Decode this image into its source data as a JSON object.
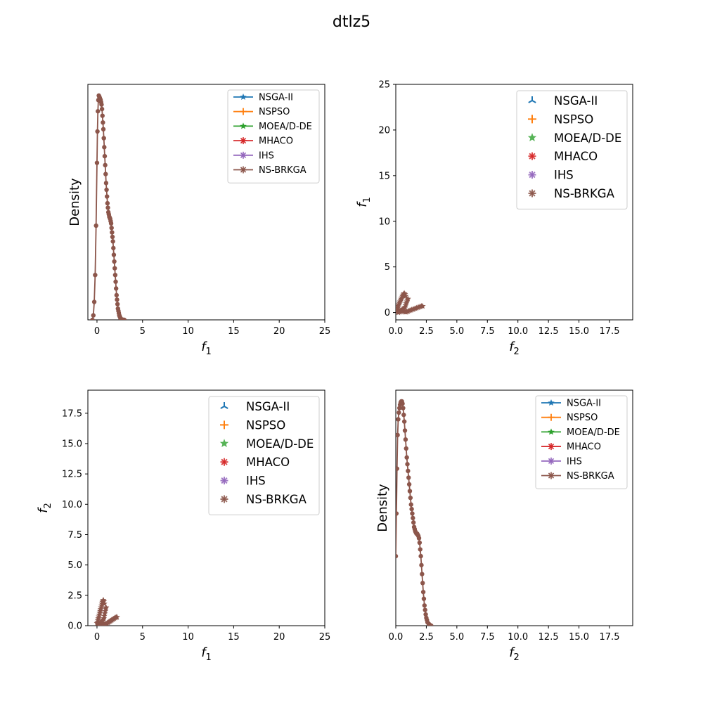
{
  "figure": {
    "title": "dtlz5"
  },
  "colors": {
    "NSGA-II": "#1f77b4",
    "NSPSO": "#ff7f0e",
    "MOEA/D-DE": "#2ca02c",
    "MHACO": "#d62728",
    "IHS": "#9467bd",
    "NS-BRKGA": "#8c564b"
  },
  "chart_data": [
    {
      "id": "top-left",
      "type": "line",
      "xlabel": "f1",
      "ylabel": "Density",
      "xlim": [
        -1,
        25
      ],
      "ylim": [
        0,
        1.05
      ],
      "xticks": [
        "0",
        "5",
        "10",
        "15",
        "20",
        "25"
      ],
      "yticks": [],
      "legend": {
        "placement": "top-right",
        "style": "line",
        "size": "small",
        "entries": [
          "NSGA-II",
          "NSPSO",
          "MOEA/D-DE",
          "MHACO",
          "IHS",
          "NS-BRKGA"
        ]
      },
      "series": [
        {
          "name": "NS-BRKGA",
          "marker": "circle",
          "x": [
            -0.5,
            -0.4,
            -0.3,
            -0.2,
            -0.1,
            0.0,
            0.05,
            0.1,
            0.15,
            0.2,
            0.25,
            0.3,
            0.35,
            0.4,
            0.45,
            0.5,
            0.55,
            0.6,
            0.65,
            0.7,
            0.75,
            0.8,
            0.85,
            0.9,
            0.95,
            1.0,
            1.05,
            1.1,
            1.15,
            1.2,
            1.25,
            1.3,
            1.35,
            1.4,
            1.45,
            1.5,
            1.55,
            1.6,
            1.65,
            1.7,
            1.75,
            1.8,
            1.85,
            1.9,
            1.95,
            2.0,
            2.05,
            2.1,
            2.15,
            2.2,
            2.25,
            2.3,
            2.35,
            2.4,
            2.45,
            2.5,
            2.55,
            2.6,
            2.65,
            2.7,
            2.8,
            2.9,
            3.0
          ],
          "y": [
            0.0,
            0.02,
            0.08,
            0.2,
            0.42,
            0.7,
            0.84,
            0.93,
            0.98,
            1.0,
            0.995,
            0.99,
            0.985,
            0.98,
            0.97,
            0.96,
            0.94,
            0.91,
            0.88,
            0.85,
            0.81,
            0.77,
            0.73,
            0.69,
            0.65,
            0.61,
            0.58,
            0.55,
            0.52,
            0.5,
            0.48,
            0.47,
            0.46,
            0.455,
            0.45,
            0.44,
            0.43,
            0.41,
            0.39,
            0.37,
            0.35,
            0.32,
            0.29,
            0.26,
            0.23,
            0.2,
            0.17,
            0.14,
            0.11,
            0.09,
            0.07,
            0.05,
            0.04,
            0.03,
            0.02,
            0.015,
            0.01,
            0.006,
            0.004,
            0.002,
            0.001,
            0.0,
            0.0
          ]
        }
      ]
    },
    {
      "id": "top-right",
      "type": "scatter",
      "xlabel": "f2",
      "ylabel": "f1",
      "xlim": [
        0,
        19.4
      ],
      "ylim": [
        -0.8,
        25
      ],
      "xticks": [
        "0.0",
        "2.5",
        "5.0",
        "7.5",
        "10.0",
        "12.5",
        "15.0",
        "17.5"
      ],
      "yticks": [
        "0",
        "5",
        "10",
        "15",
        "20",
        "25"
      ],
      "legend": {
        "placement": "top-right",
        "style": "marker",
        "size": "large",
        "entries": [
          "NSGA-II",
          "NSPSO",
          "MOEA/D-DE",
          "MHACO",
          "IHS",
          "NS-BRKGA"
        ]
      },
      "series": [
        {
          "name": "NS-BRKGA",
          "marker": "star",
          "x": [
            0.0,
            0.05,
            0.1,
            0.15,
            0.2,
            0.25,
            0.3,
            0.35,
            0.4,
            0.45,
            0.5,
            0.55,
            0.6,
            0.65,
            0.7,
            0.75,
            0.8,
            0.9,
            1.0,
            1.1,
            1.2,
            1.3,
            1.4,
            1.5,
            1.6,
            1.7,
            1.8,
            1.9,
            2.0,
            2.1,
            2.2,
            0.1,
            0.2,
            0.3,
            0.4,
            0.5,
            0.6,
            0.7,
            0.75,
            0.8,
            0.85,
            0.9,
            0.95,
            1.0,
            0.2,
            0.3,
            0.4,
            0.5,
            0.6,
            0.7,
            0.8,
            0.9
          ],
          "y": [
            0.2,
            0.3,
            0.45,
            0.6,
            0.75,
            0.9,
            1.05,
            1.2,
            1.35,
            1.5,
            1.65,
            1.8,
            1.95,
            2.05,
            2.1,
            2.0,
            1.8,
            0.1,
            0.15,
            0.2,
            0.25,
            0.3,
            0.35,
            0.4,
            0.45,
            0.5,
            0.55,
            0.6,
            0.65,
            0.7,
            0.7,
            0.1,
            0.15,
            0.2,
            0.25,
            0.3,
            0.4,
            0.5,
            0.6,
            0.8,
            1.0,
            1.2,
            1.4,
            1.5,
            0.0,
            0.05,
            0.1,
            0.15,
            0.2,
            0.1,
            0.05,
            0.08
          ]
        }
      ]
    },
    {
      "id": "bottom-left",
      "type": "scatter",
      "xlabel": "f1",
      "ylabel": "f2",
      "xlim": [
        -1,
        25
      ],
      "ylim": [
        0,
        19.4
      ],
      "xticks": [
        "0",
        "5",
        "10",
        "15",
        "20",
        "25"
      ],
      "yticks": [
        "0.0",
        "2.5",
        "5.0",
        "7.5",
        "10.0",
        "12.5",
        "15.0",
        "17.5"
      ],
      "legend": {
        "placement": "top-right",
        "style": "marker",
        "size": "large",
        "entries": [
          "NSGA-II",
          "NSPSO",
          "MOEA/D-DE",
          "MHACO",
          "IHS",
          "NS-BRKGA"
        ]
      },
      "series": [
        {
          "name": "NS-BRKGA",
          "marker": "star",
          "x": [
            0.0,
            0.05,
            0.1,
            0.15,
            0.2,
            0.25,
            0.3,
            0.35,
            0.4,
            0.45,
            0.5,
            0.55,
            0.6,
            0.65,
            0.7,
            0.75,
            0.8,
            0.9,
            1.0,
            1.1,
            1.2,
            1.3,
            1.4,
            1.5,
            1.6,
            1.7,
            1.8,
            1.9,
            2.0,
            2.1,
            2.2,
            0.1,
            0.2,
            0.3,
            0.4,
            0.5,
            0.6,
            0.7,
            0.75,
            0.8,
            0.85,
            0.9,
            0.95,
            1.0,
            0.2,
            0.3,
            0.4,
            0.5,
            0.6,
            0.7,
            0.8,
            0.9
          ],
          "y": [
            0.2,
            0.3,
            0.45,
            0.6,
            0.75,
            0.9,
            1.05,
            1.2,
            1.35,
            1.5,
            1.65,
            1.8,
            1.95,
            2.05,
            2.1,
            2.0,
            1.8,
            0.1,
            0.15,
            0.2,
            0.25,
            0.3,
            0.35,
            0.4,
            0.45,
            0.5,
            0.55,
            0.6,
            0.65,
            0.7,
            0.7,
            0.1,
            0.15,
            0.2,
            0.25,
            0.3,
            0.4,
            0.5,
            0.6,
            0.8,
            1.0,
            1.2,
            1.4,
            1.5,
            0.0,
            0.05,
            0.1,
            0.15,
            0.2,
            0.1,
            0.05,
            0.08
          ]
        }
      ]
    },
    {
      "id": "bottom-right",
      "type": "line",
      "xlabel": "f2",
      "ylabel": "Density",
      "xlim": [
        0,
        19.4
      ],
      "ylim": [
        0,
        1.05
      ],
      "xticks": [
        "0.0",
        "2.5",
        "5.0",
        "7.5",
        "10.0",
        "12.5",
        "15.0",
        "17.5"
      ],
      "yticks": [],
      "legend": {
        "placement": "top-right",
        "style": "line",
        "size": "small",
        "entries": [
          "NSGA-II",
          "NSPSO",
          "MOEA/D-DE",
          "MHACO",
          "IHS",
          "NS-BRKGA"
        ]
      },
      "series": [
        {
          "name": "NS-BRKGA",
          "marker": "circle",
          "x": [
            0.0,
            0.05,
            0.1,
            0.15,
            0.2,
            0.25,
            0.3,
            0.35,
            0.4,
            0.45,
            0.5,
            0.55,
            0.6,
            0.65,
            0.7,
            0.75,
            0.8,
            0.85,
            0.9,
            0.95,
            1.0,
            1.05,
            1.1,
            1.15,
            1.2,
            1.25,
            1.3,
            1.35,
            1.4,
            1.45,
            1.5,
            1.55,
            1.6,
            1.65,
            1.7,
            1.75,
            1.8,
            1.85,
            1.9,
            1.95,
            2.0,
            2.05,
            2.1,
            2.15,
            2.2,
            2.25,
            2.3,
            2.35,
            2.4,
            2.45,
            2.5,
            2.55,
            2.6,
            2.7,
            2.8,
            2.9
          ],
          "y": [
            0.31,
            0.5,
            0.7,
            0.85,
            0.92,
            0.95,
            0.97,
            0.985,
            0.995,
            1.0,
            1.0,
            0.99,
            0.97,
            0.94,
            0.91,
            0.87,
            0.83,
            0.79,
            0.75,
            0.72,
            0.69,
            0.66,
            0.63,
            0.6,
            0.57,
            0.54,
            0.52,
            0.5,
            0.48,
            0.46,
            0.44,
            0.43,
            0.42,
            0.415,
            0.41,
            0.41,
            0.405,
            0.4,
            0.39,
            0.37,
            0.34,
            0.31,
            0.27,
            0.23,
            0.19,
            0.15,
            0.12,
            0.09,
            0.07,
            0.05,
            0.035,
            0.025,
            0.015,
            0.008,
            0.003,
            0.0
          ]
        }
      ]
    }
  ]
}
